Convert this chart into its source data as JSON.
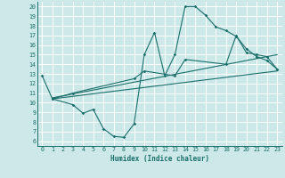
{
  "xlabel": "Humidex (Indice chaleur)",
  "bg_color": "#cce8e8",
  "line_color": "#1a6e6a",
  "xlim": [
    -0.5,
    23.5
  ],
  "ylim": [
    5.5,
    20.5
  ],
  "xticks": [
    0,
    1,
    2,
    3,
    4,
    5,
    6,
    7,
    8,
    9,
    10,
    11,
    12,
    13,
    14,
    15,
    16,
    17,
    18,
    19,
    20,
    21,
    22,
    23
  ],
  "yticks": [
    6,
    7,
    8,
    9,
    10,
    11,
    12,
    13,
    14,
    15,
    16,
    17,
    18,
    19,
    20
  ],
  "line1_x": [
    0,
    1,
    3,
    4,
    5,
    6,
    7,
    8,
    9,
    10,
    11,
    12,
    13,
    14,
    15,
    16,
    17,
    18,
    19,
    20,
    21,
    22,
    23
  ],
  "line1_y": [
    12.8,
    10.4,
    9.8,
    8.9,
    9.3,
    7.3,
    6.5,
    6.4,
    7.8,
    15.0,
    17.3,
    12.8,
    15.0,
    20.0,
    20.0,
    19.1,
    17.9,
    17.5,
    16.9,
    15.6,
    14.8,
    14.4,
    13.5
  ],
  "line2_x": [
    1,
    3,
    9,
    10,
    13,
    14,
    18,
    19,
    20,
    21,
    22,
    23
  ],
  "line2_y": [
    10.4,
    11.0,
    12.5,
    13.3,
    12.8,
    14.5,
    14.0,
    17.0,
    15.2,
    15.0,
    14.8,
    13.5
  ],
  "line3_x": [
    1,
    23
  ],
  "line3_y": [
    10.4,
    13.3
  ],
  "line4_x": [
    1,
    23
  ],
  "line4_y": [
    10.5,
    15.0
  ]
}
